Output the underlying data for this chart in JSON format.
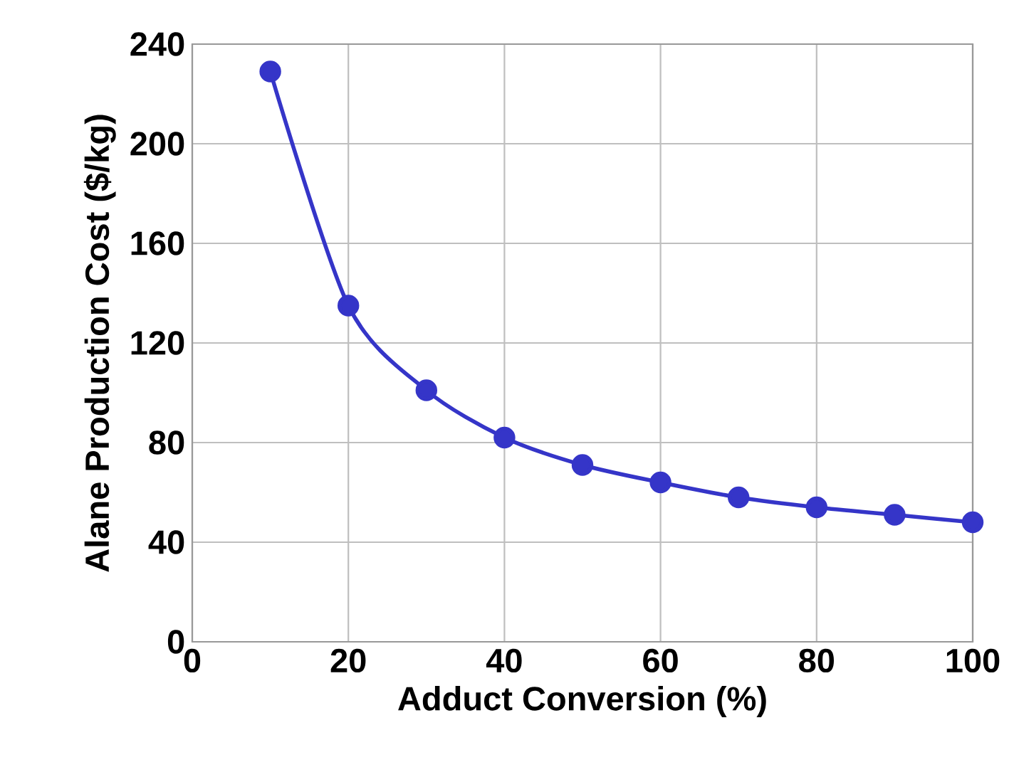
{
  "chart_data": {
    "type": "line",
    "xlabel": "Adduct Conversion (%)",
    "ylabel": "Alane Production Cost ($/kg)",
    "x": [
      10,
      20,
      30,
      40,
      50,
      60,
      70,
      80,
      90,
      100
    ],
    "series": [
      {
        "color": "#3535c8",
        "values": [
          229,
          135,
          101,
          82,
          71,
          64,
          58,
          54,
          51,
          48
        ]
      }
    ],
    "xlim": [
      0,
      100
    ],
    "ylim": [
      0,
      240
    ],
    "xticks": [
      0,
      20,
      40,
      60,
      80,
      100
    ],
    "yticks": [
      0,
      40,
      80,
      120,
      160,
      200,
      240
    ],
    "grid": true,
    "marker": "circle",
    "line_style": "solid"
  }
}
